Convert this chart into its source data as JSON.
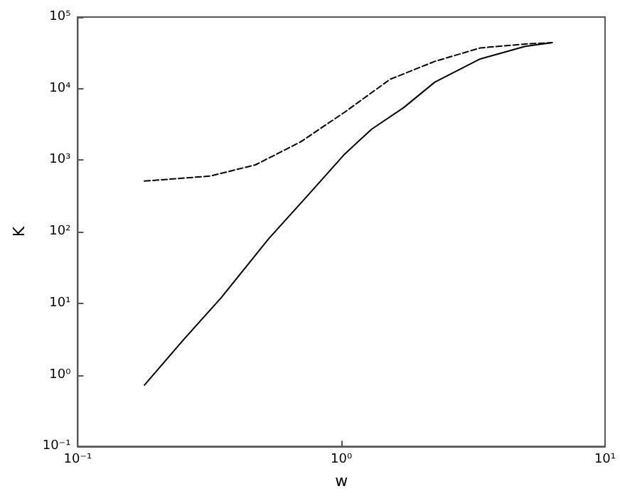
{
  "chart_data": {
    "type": "line",
    "xlabel": "w",
    "ylabel": "K",
    "log": "xy",
    "grid": false,
    "marker": "none",
    "xlim": [
      0.1,
      10
    ],
    "ylim": [
      0.1,
      100000
    ],
    "xticks": [
      {
        "value": 0.1,
        "label": "10⁻¹"
      },
      {
        "value": 1,
        "label": "10⁰"
      },
      {
        "value": 10,
        "label": "10¹"
      }
    ],
    "yticks": [
      {
        "value": 0.1,
        "label": "10⁻¹"
      },
      {
        "value": 1,
        "label": "10⁰"
      },
      {
        "value": 10,
        "label": "10¹"
      },
      {
        "value": 100,
        "label": "10²"
      },
      {
        "value": 1000,
        "label": "10³"
      },
      {
        "value": 10000,
        "label": "10⁴"
      },
      {
        "value": 100000,
        "label": "10⁵"
      }
    ],
    "series": [
      {
        "color": "#000000",
        "line_style": "solid",
        "x": [
          0.179,
          0.25,
          0.35,
          0.53,
          0.75,
          1.03,
          1.3,
          1.72,
          2.26,
          3.36,
          4.98,
          6.3
        ],
        "values": [
          0.72,
          3,
          12,
          80,
          330,
          1220,
          2700,
          5400,
          12300,
          26000,
          39000,
          43800
        ]
      },
      {
        "color": "#000000",
        "line_style": "dashed",
        "x": [
          0.179,
          0.318,
          0.472,
          0.7,
          1.03,
          1.53,
          2.26,
          3.36,
          4.98,
          6.3
        ],
        "values": [
          510,
          600,
          860,
          1800,
          4700,
          13500,
          24000,
          37000,
          42000,
          43800
        ]
      }
    ]
  }
}
